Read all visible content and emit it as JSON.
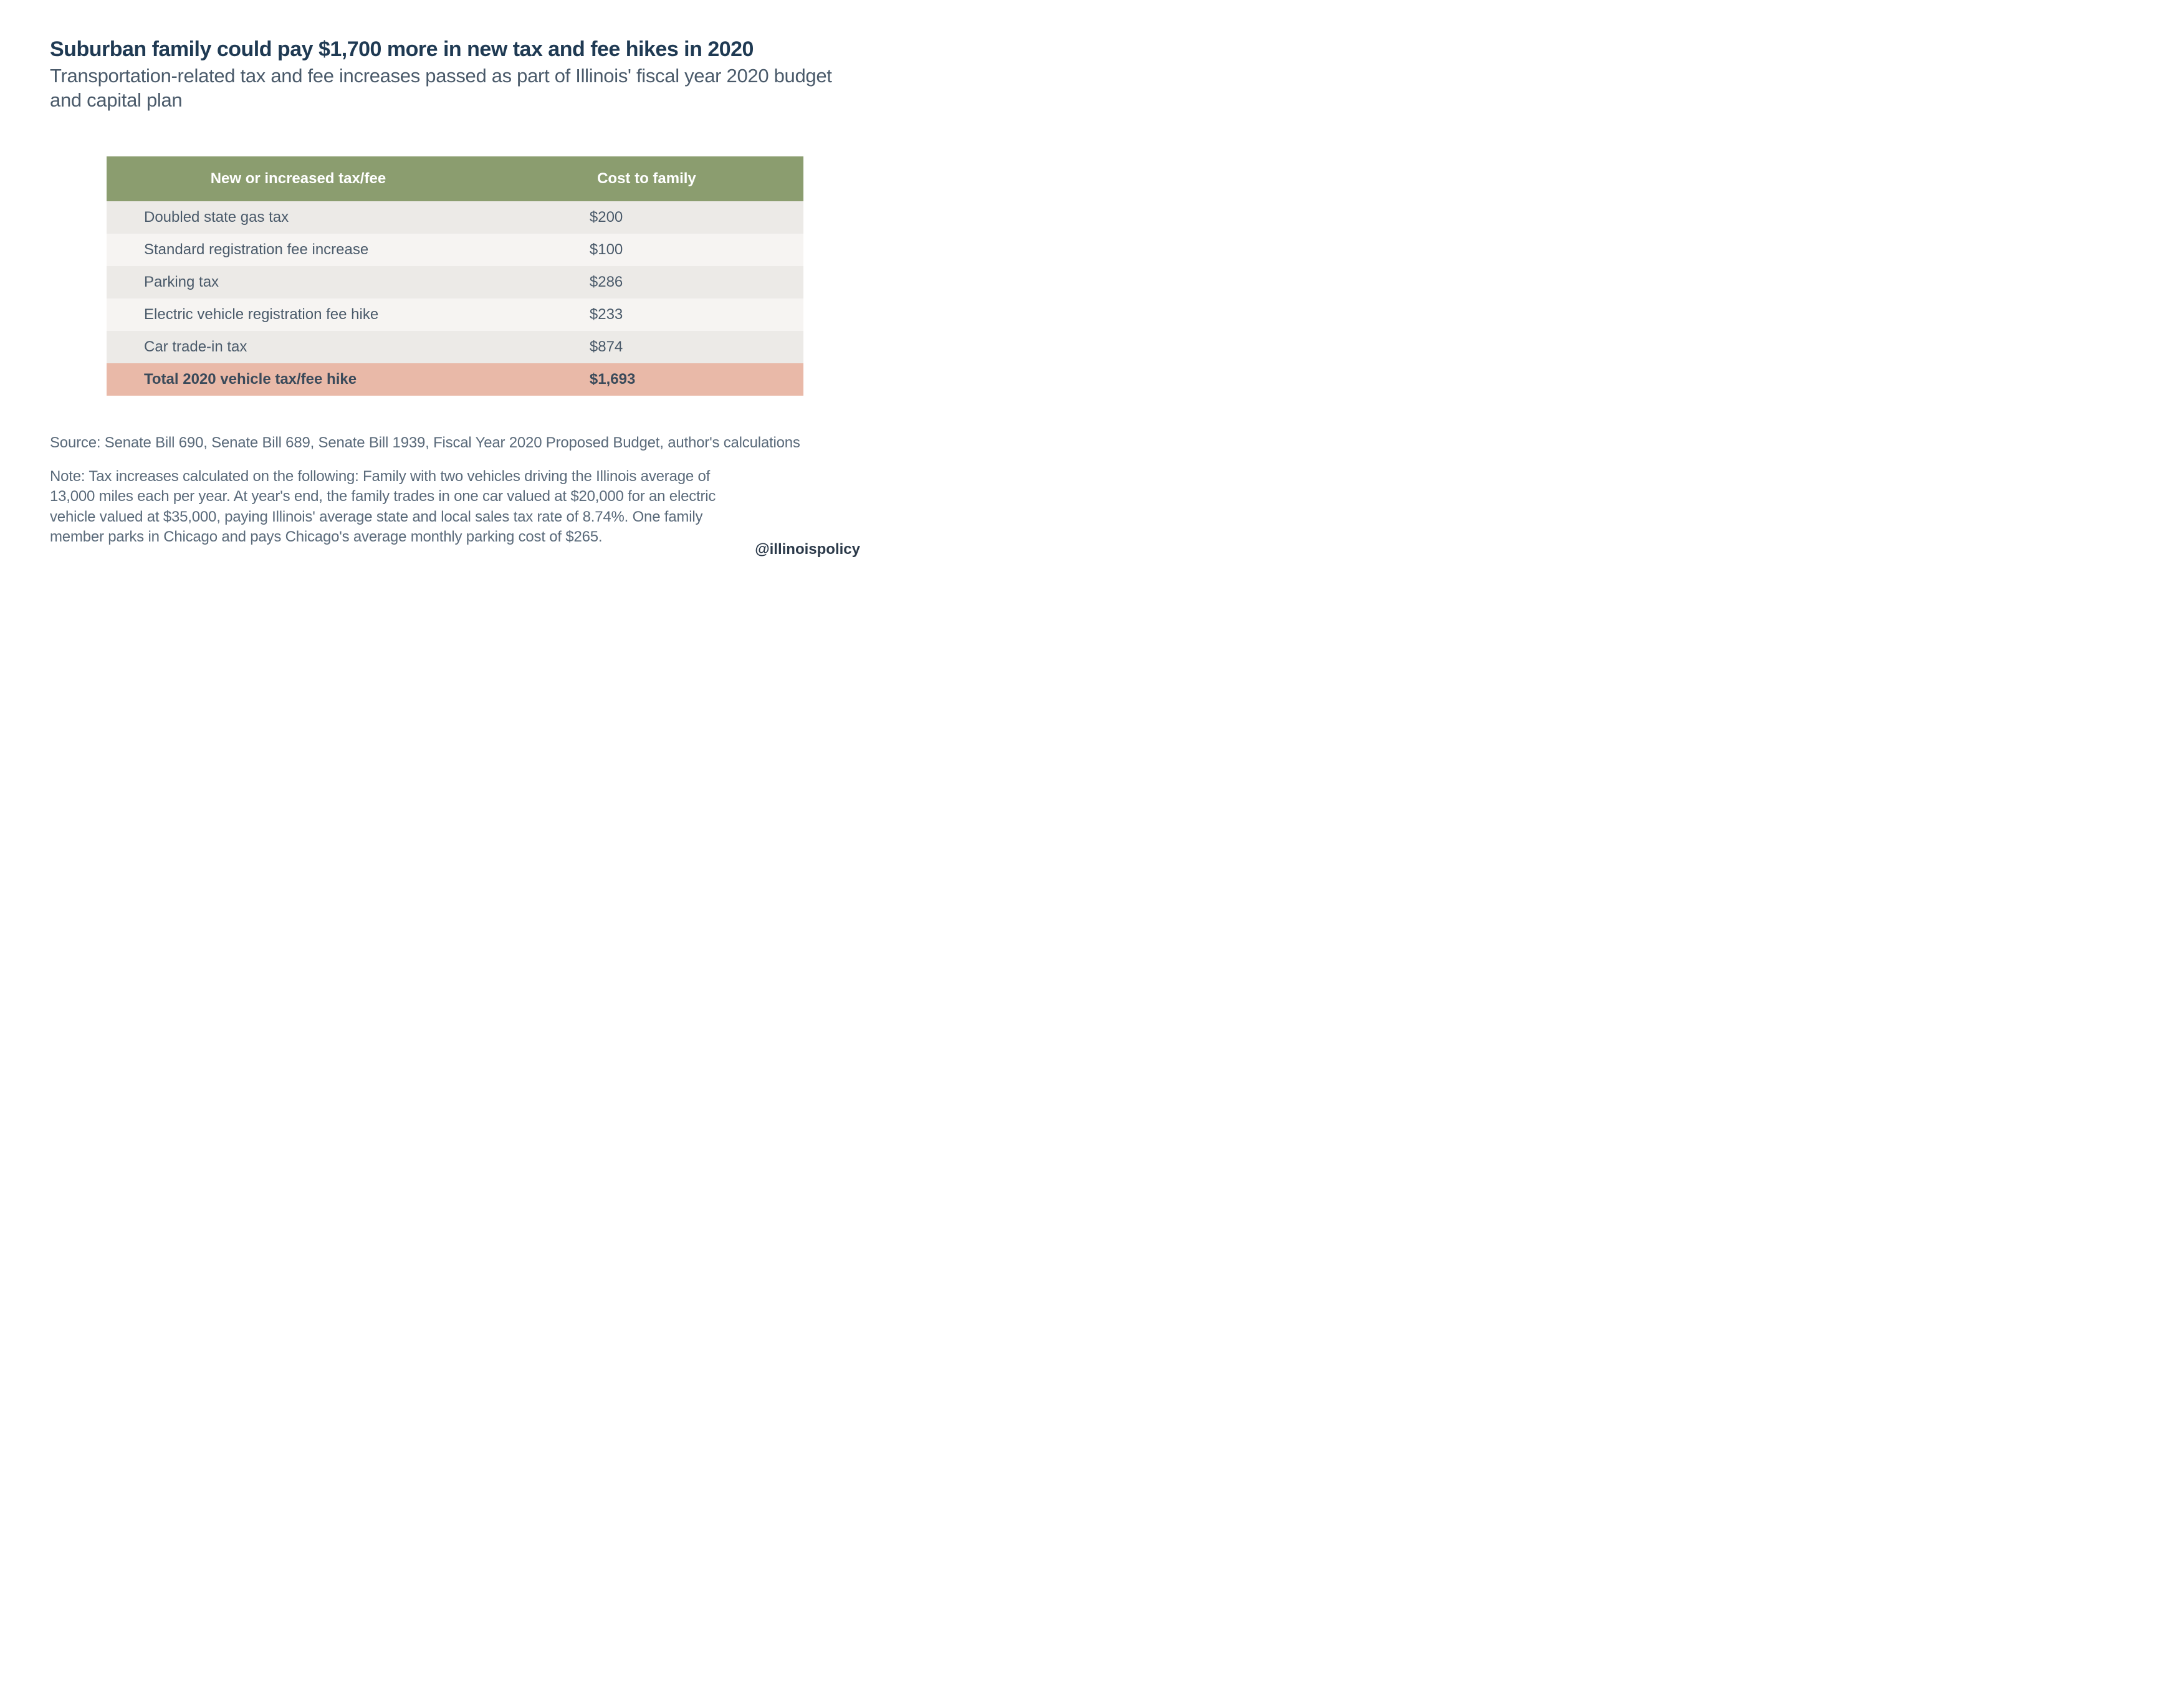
{
  "title": "Suburban family could pay $1,700 more in new tax and fee hikes in 2020",
  "subtitle": "Transportation-related tax and fee increases passed as part of Illinois' fiscal year 2020 budget and capital plan",
  "table": {
    "type": "table",
    "header_bg": "#8b9d6f",
    "header_color": "#ffffff",
    "row_odd_bg": "#eceae7",
    "row_even_bg": "#f6f4f2",
    "total_bg": "#e9b9a8",
    "columns": [
      "New or increased tax/fee",
      "Cost to family"
    ],
    "rows": [
      {
        "label": "Doubled state gas tax",
        "cost": "$200"
      },
      {
        "label": "Standard registration fee increase",
        "cost": "$100"
      },
      {
        "label": "Parking tax",
        "cost": "$286"
      },
      {
        "label": "Electric vehicle registration fee hike",
        "cost": "$233"
      },
      {
        "label": "Car trade-in tax",
        "cost": "$874"
      }
    ],
    "total": {
      "label": "Total 2020 vehicle tax/fee hike",
      "cost": "$1,693"
    }
  },
  "source": "Source: Senate Bill 690, Senate Bill 689, Senate Bill 1939, Fiscal Year 2020 Proposed Budget, author's calculations",
  "note": "Note: Tax increases calculated on the following: Family with two vehicles driving the Illinois average of 13,000 miles each per year. At year's end, the family trades in one car valued at $20,000 for an electric vehicle valued at $35,000, paying Illinois' average state and local sales tax rate of 8.74%. One family member parks in Chicago and pays Chicago's average monthly parking cost of $265.",
  "handle": "@illinoispolicy",
  "colors": {
    "title_color": "#1f3a53",
    "body_color": "#4a5a6a",
    "background": "#ffffff"
  },
  "font_sizes": {
    "title": 34,
    "subtitle": 31,
    "table": 24,
    "footer": 24
  }
}
